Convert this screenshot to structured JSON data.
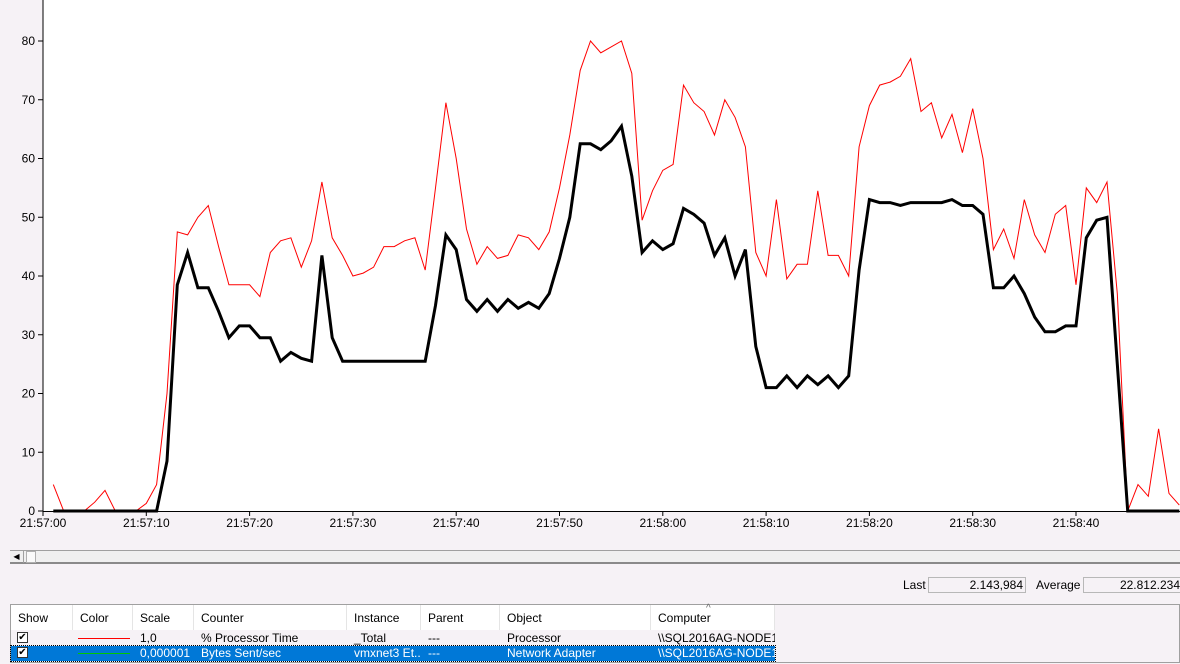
{
  "chart_data": {
    "type": "line",
    "ylim": [
      0,
      100
    ],
    "y_ticks": [
      "0",
      "10",
      "20",
      "30",
      "40",
      "50",
      "60",
      "70",
      "80"
    ],
    "x_ticks": [
      "21:57:00",
      "21:57:10",
      "21:57:20",
      "21:57:30",
      "21:57:40",
      "21:57:50",
      "21:58:00",
      "21:58:10",
      "21:58:20",
      "21:58:30",
      "21:58:40"
    ],
    "grid": false,
    "x": [
      "21:57:01",
      "21:57:02",
      "21:57:03",
      "21:57:04",
      "21:57:05",
      "21:57:06",
      "21:57:07",
      "21:57:08",
      "21:57:09",
      "21:57:10",
      "21:57:11",
      "21:57:12",
      "21:57:13",
      "21:57:14",
      "21:57:15",
      "21:57:16",
      "21:57:17",
      "21:57:18",
      "21:57:19",
      "21:57:20",
      "21:57:21",
      "21:57:22",
      "21:57:23",
      "21:57:24",
      "21:57:25",
      "21:57:26",
      "21:57:27",
      "21:57:28",
      "21:57:29",
      "21:57:30",
      "21:57:31",
      "21:57:32",
      "21:57:33",
      "21:57:34",
      "21:57:35",
      "21:57:36",
      "21:57:37",
      "21:57:38",
      "21:57:39",
      "21:57:40",
      "21:57:41",
      "21:57:42",
      "21:57:43",
      "21:57:44",
      "21:57:45",
      "21:57:46",
      "21:57:47",
      "21:57:48",
      "21:57:49",
      "21:57:50",
      "21:57:51",
      "21:57:52",
      "21:57:53",
      "21:57:54",
      "21:57:55",
      "21:57:56",
      "21:57:57",
      "21:57:58",
      "21:57:59",
      "21:58:00",
      "21:58:01",
      "21:58:02",
      "21:58:03",
      "21:58:04",
      "21:58:05",
      "21:58:06",
      "21:58:07",
      "21:58:08",
      "21:58:09",
      "21:58:10",
      "21:58:11",
      "21:58:12",
      "21:58:13",
      "21:58:14",
      "21:58:15",
      "21:58:16",
      "21:58:17",
      "21:58:18",
      "21:58:19",
      "21:58:20",
      "21:58:21",
      "21:58:22",
      "21:58:23",
      "21:58:24",
      "21:58:25",
      "21:58:26",
      "21:58:27",
      "21:58:28",
      "21:58:29",
      "21:58:30",
      "21:58:31",
      "21:58:32",
      "21:58:33",
      "21:58:34",
      "21:58:35",
      "21:58:36",
      "21:58:37",
      "21:58:38",
      "21:58:39",
      "21:58:40",
      "21:58:41",
      "21:58:42",
      "21:58:43",
      "21:58:44",
      "21:58:45",
      "21:58:46",
      "21:58:47",
      "21:58:48",
      "21:58:49",
      "21:58:50"
    ],
    "series": [
      {
        "name": "% Processor Time",
        "color": "#ff0000",
        "highlighted": false,
        "values": [
          4.5,
          0,
          0,
          0,
          1.5,
          3.5,
          0,
          0,
          0,
          1.3,
          4.5,
          20,
          47.5,
          47,
          50,
          52,
          45,
          38.5,
          38.5,
          38.5,
          36.5,
          44,
          46,
          46.5,
          41.5,
          46,
          56,
          46.5,
          43.5,
          40,
          40.5,
          41.5,
          45,
          45,
          46,
          46.5,
          41,
          55,
          69.5,
          60,
          48,
          42,
          45,
          43,
          43.5,
          47,
          46.5,
          44.5,
          47.5,
          55,
          64,
          75,
          80,
          78,
          79,
          80,
          74.5,
          49.5,
          54.5,
          58,
          59,
          72.5,
          69.5,
          68,
          64,
          70,
          67,
          62,
          44,
          40,
          53,
          39.5,
          42,
          42,
          54.5,
          43.5,
          43.5,
          40,
          62,
          69,
          72.5,
          73,
          74,
          77,
          68,
          69.5,
          63.5,
          67.5,
          61,
          68.5,
          60,
          44.5,
          48,
          43,
          53,
          47,
          44,
          50.5,
          52,
          38.5,
          55,
          52.5,
          56,
          37,
          0,
          4.5,
          2.5,
          14,
          3,
          1
        ]
      },
      {
        "name": "Bytes Sent/sec",
        "color": "#00c800",
        "highlighted": true,
        "values": [
          0,
          0,
          0,
          0,
          0,
          0,
          0,
          0,
          0,
          0,
          0,
          8.5,
          38.5,
          44,
          38,
          38,
          34,
          29.5,
          31.5,
          31.5,
          29.5,
          29.5,
          25.5,
          27,
          26,
          25.5,
          43.5,
          29.5,
          25.5,
          25.5,
          25.5,
          25.5,
          25.5,
          25.5,
          25.5,
          25.5,
          25.5,
          35,
          47,
          44.5,
          36,
          34,
          36,
          34,
          36,
          34.5,
          35.5,
          34.5,
          37,
          43,
          50,
          62.5,
          62.5,
          61.5,
          63,
          65.5,
          57,
          44,
          46,
          44.5,
          45.5,
          51.5,
          50.5,
          49,
          43.5,
          46.5,
          40,
          44.5,
          28,
          21,
          21,
          23,
          21,
          23,
          21.5,
          23,
          21,
          23,
          41,
          53,
          52.5,
          52.5,
          52,
          52.5,
          52.5,
          52.5,
          52.5,
          53,
          52,
          52,
          50.5,
          38,
          38,
          40,
          37,
          33,
          30.5,
          30.5,
          31.5,
          31.5,
          46.5,
          49.5,
          50,
          25,
          0,
          0,
          0,
          0,
          0,
          0
        ]
      }
    ]
  },
  "stats": {
    "last_label": "Last",
    "last_value": "2.143,984",
    "average_label": "Average",
    "average_value": "22.812.234"
  },
  "table": {
    "headers": [
      "Show",
      "Color",
      "Scale",
      "Counter",
      "Instance",
      "Parent",
      "Object",
      "Computer"
    ],
    "sort_indicator": "^",
    "rows": [
      {
        "show": true,
        "color": "#ff0000",
        "scale": "1,0",
        "counter": "% Processor Time",
        "instance": "_Total",
        "parent": "---",
        "object": "Processor",
        "computer": "\\\\SQL2016AG-NODE1",
        "selected": false
      },
      {
        "show": true,
        "color": "#00c800",
        "scale": "0,000001",
        "counter": "Bytes Sent/sec",
        "instance": "vmxnet3 Et...",
        "parent": "---",
        "object": "Network Adapter",
        "computer": "\\\\SQL2016AG-NODE1",
        "selected": true
      }
    ]
  }
}
